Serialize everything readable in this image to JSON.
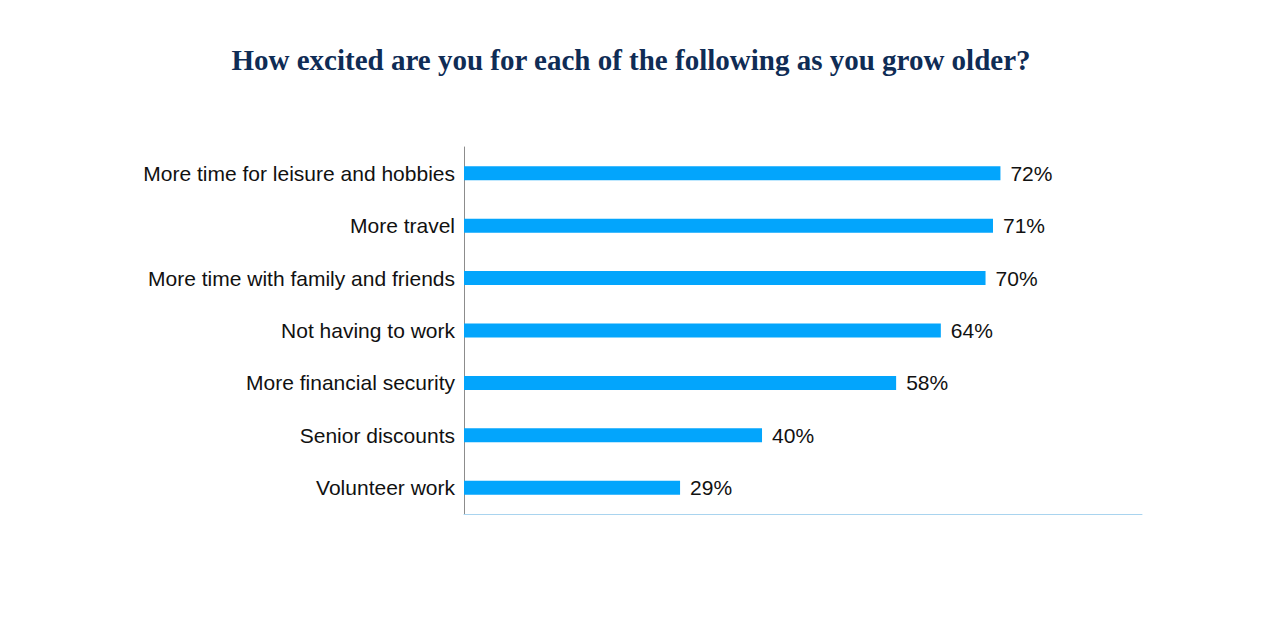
{
  "chart_data": {
    "type": "bar",
    "orientation": "horizontal",
    "title": "How excited are you for each of the following as you grow older?",
    "categories": [
      "More time for leisure and hobbies",
      "More travel",
      "More time with family and friends",
      "Not having to work",
      "More financial security",
      "Senior discounts",
      "Volunteer work"
    ],
    "values": [
      72,
      71,
      70,
      64,
      58,
      40,
      29
    ],
    "value_labels": [
      "72%",
      "71%",
      "70%",
      "64%",
      "58%",
      "40%",
      "29%"
    ],
    "color": "#03a5fc",
    "xlim": [
      0,
      91
    ],
    "grid": false,
    "data_labels": true,
    "tick_labels": "y"
  }
}
